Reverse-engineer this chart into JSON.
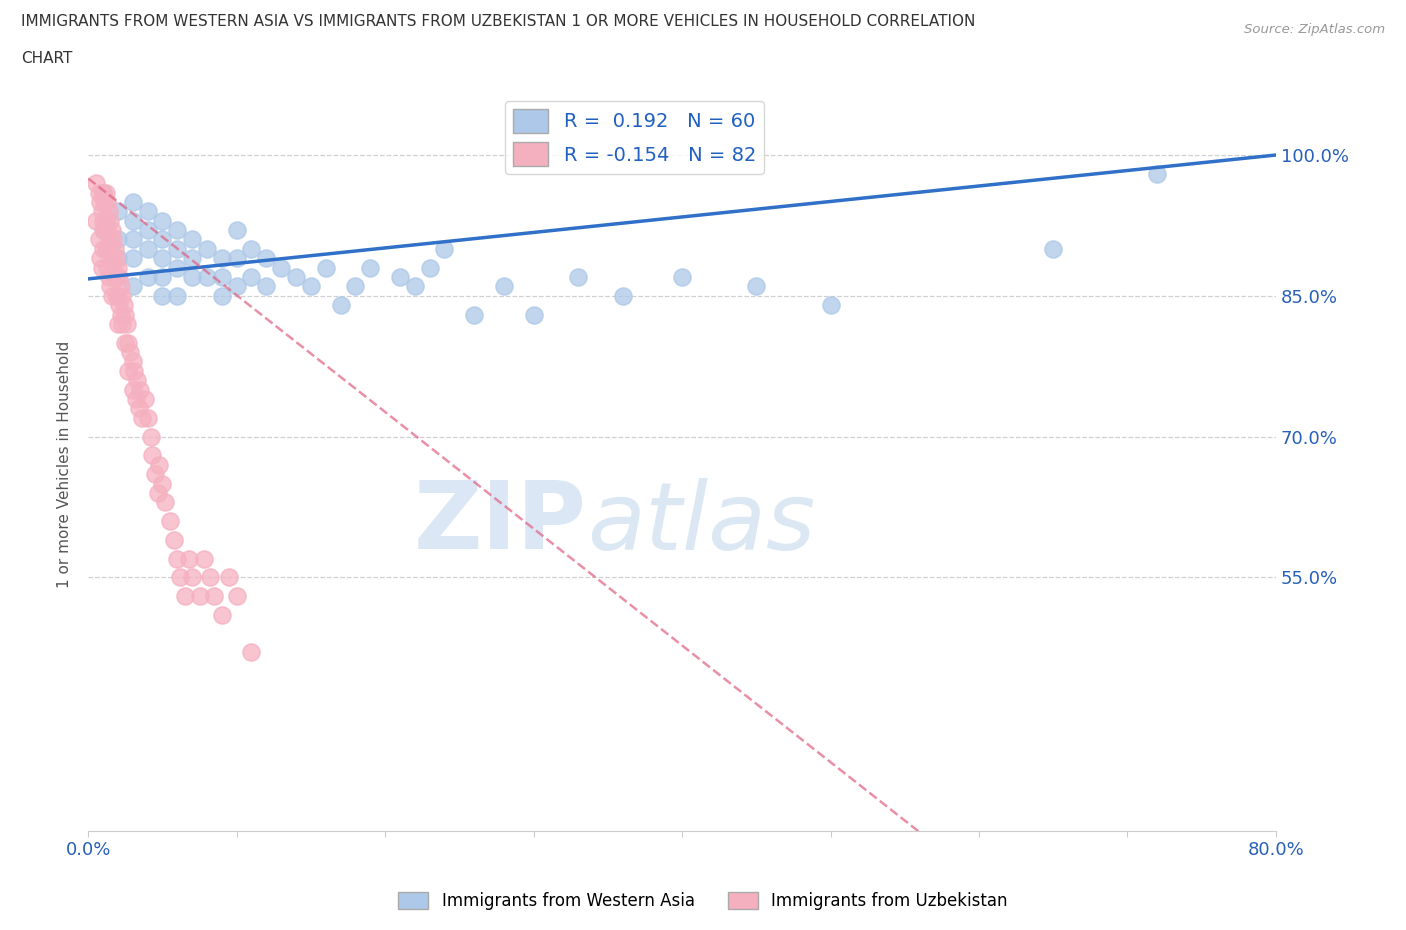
{
  "title_line1": "IMMIGRANTS FROM WESTERN ASIA VS IMMIGRANTS FROM UZBEKISTAN 1 OR MORE VEHICLES IN HOUSEHOLD CORRELATION",
  "title_line2": "CHART",
  "source_text": "Source: ZipAtlas.com",
  "ylabel": "1 or more Vehicles in Household",
  "xlim": [
    0.0,
    0.8
  ],
  "ylim": [
    0.28,
    1.06
  ],
  "x_ticks": [
    0.0,
    0.1,
    0.2,
    0.3,
    0.4,
    0.5,
    0.6,
    0.7,
    0.8
  ],
  "y_ticks": [
    0.55,
    0.7,
    0.85,
    1.0
  ],
  "r_blue": 0.192,
  "n_blue": 60,
  "r_pink": -0.154,
  "n_pink": 82,
  "blue_color": "#adc8e8",
  "pink_color": "#f5b0c0",
  "blue_line_color": "#3070c8",
  "pink_line_color": "#e06080",
  "watermark_zip": "ZIP",
  "watermark_atlas": "atlas",
  "legend_label_blue": "Immigrants from Western Asia",
  "legend_label_pink": "Immigrants from Uzbekistan",
  "blue_scatter_x": [
    0.01,
    0.01,
    0.02,
    0.02,
    0.02,
    0.02,
    0.03,
    0.03,
    0.03,
    0.03,
    0.03,
    0.04,
    0.04,
    0.04,
    0.04,
    0.05,
    0.05,
    0.05,
    0.05,
    0.05,
    0.06,
    0.06,
    0.06,
    0.06,
    0.07,
    0.07,
    0.07,
    0.08,
    0.08,
    0.09,
    0.09,
    0.09,
    0.1,
    0.1,
    0.1,
    0.11,
    0.11,
    0.12,
    0.12,
    0.13,
    0.14,
    0.15,
    0.16,
    0.17,
    0.18,
    0.19,
    0.21,
    0.22,
    0.23,
    0.24,
    0.26,
    0.28,
    0.3,
    0.33,
    0.36,
    0.4,
    0.45,
    0.5,
    0.65,
    0.72
  ],
  "blue_scatter_y": [
    0.96,
    0.92,
    0.94,
    0.91,
    0.89,
    0.87,
    0.95,
    0.93,
    0.91,
    0.89,
    0.86,
    0.94,
    0.92,
    0.9,
    0.87,
    0.93,
    0.91,
    0.89,
    0.87,
    0.85,
    0.92,
    0.9,
    0.88,
    0.85,
    0.91,
    0.89,
    0.87,
    0.9,
    0.87,
    0.89,
    0.87,
    0.85,
    0.92,
    0.89,
    0.86,
    0.9,
    0.87,
    0.89,
    0.86,
    0.88,
    0.87,
    0.86,
    0.88,
    0.84,
    0.86,
    0.88,
    0.87,
    0.86,
    0.88,
    0.9,
    0.83,
    0.86,
    0.83,
    0.87,
    0.85,
    0.87,
    0.86,
    0.84,
    0.9,
    0.98
  ],
  "pink_scatter_x": [
    0.005,
    0.005,
    0.007,
    0.007,
    0.008,
    0.008,
    0.009,
    0.009,
    0.01,
    0.01,
    0.01,
    0.011,
    0.011,
    0.012,
    0.012,
    0.012,
    0.013,
    0.013,
    0.013,
    0.014,
    0.014,
    0.014,
    0.015,
    0.015,
    0.015,
    0.016,
    0.016,
    0.016,
    0.017,
    0.017,
    0.018,
    0.018,
    0.019,
    0.019,
    0.02,
    0.02,
    0.02,
    0.021,
    0.021,
    0.022,
    0.022,
    0.023,
    0.023,
    0.024,
    0.025,
    0.025,
    0.026,
    0.027,
    0.027,
    0.028,
    0.03,
    0.03,
    0.031,
    0.032,
    0.033,
    0.034,
    0.035,
    0.036,
    0.038,
    0.04,
    0.042,
    0.043,
    0.045,
    0.047,
    0.048,
    0.05,
    0.052,
    0.055,
    0.058,
    0.06,
    0.062,
    0.065,
    0.068,
    0.07,
    0.075,
    0.078,
    0.082,
    0.085,
    0.09,
    0.095,
    0.1,
    0.11
  ],
  "pink_scatter_y": [
    0.97,
    0.93,
    0.96,
    0.91,
    0.95,
    0.89,
    0.94,
    0.88,
    0.96,
    0.93,
    0.9,
    0.95,
    0.92,
    0.96,
    0.93,
    0.9,
    0.95,
    0.92,
    0.88,
    0.94,
    0.91,
    0.87,
    0.93,
    0.9,
    0.86,
    0.92,
    0.89,
    0.85,
    0.91,
    0.88,
    0.9,
    0.87,
    0.89,
    0.85,
    0.88,
    0.85,
    0.82,
    0.87,
    0.84,
    0.86,
    0.83,
    0.85,
    0.82,
    0.84,
    0.83,
    0.8,
    0.82,
    0.8,
    0.77,
    0.79,
    0.78,
    0.75,
    0.77,
    0.74,
    0.76,
    0.73,
    0.75,
    0.72,
    0.74,
    0.72,
    0.7,
    0.68,
    0.66,
    0.64,
    0.67,
    0.65,
    0.63,
    0.61,
    0.59,
    0.57,
    0.55,
    0.53,
    0.57,
    0.55,
    0.53,
    0.57,
    0.55,
    0.53,
    0.51,
    0.55,
    0.53,
    0.47
  ]
}
